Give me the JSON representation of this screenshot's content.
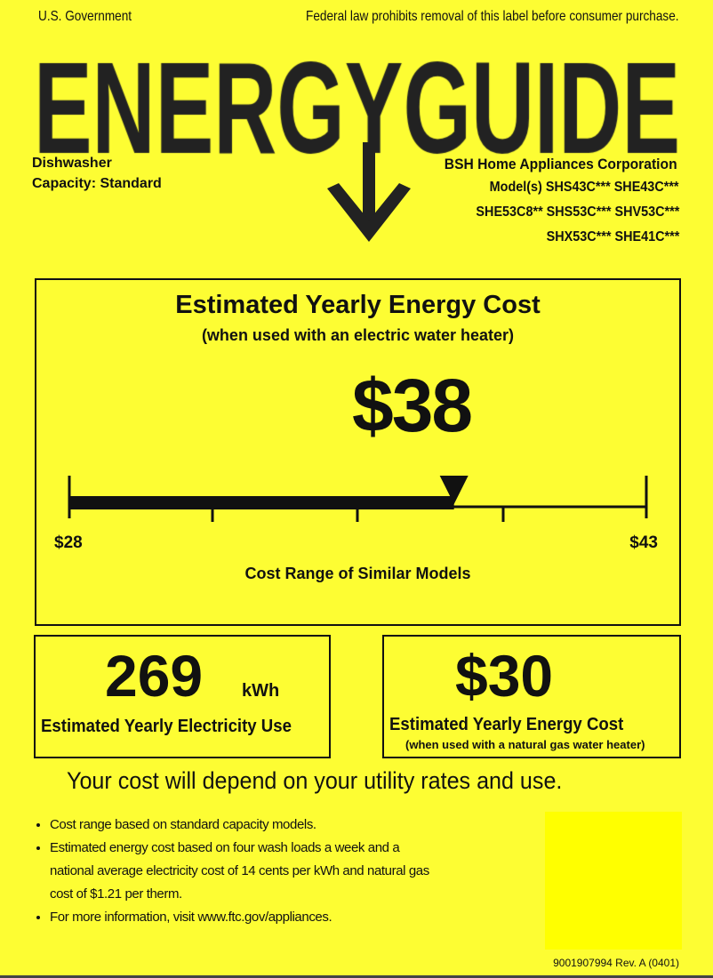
{
  "header": {
    "gov": "U.S. Government",
    "law": "Federal law prohibits removal of this label before consumer purchase."
  },
  "logo": {
    "wordmark": "ENERGYGUIDE"
  },
  "appliance": {
    "type": "Dishwasher",
    "capacity_label": "Capacity:",
    "capacity_value": "Standard"
  },
  "manufacturer": {
    "name": "BSH Home Appliances Corporation",
    "models": [
      "Model(s) SHS43C*** SHE43C***",
      "SHE53C8** SHS53C*** SHV53C***",
      "SHX53C*** SHE41C***"
    ]
  },
  "main_cost": {
    "title": "Estimated Yearly Energy Cost",
    "subtitle": "(when used with an electric water heater)",
    "value": "$38",
    "value_number": 38,
    "range_min": 28,
    "range_max": 43,
    "min_label": "$28",
    "max_label": "$43",
    "range_caption": "Cost Range of Similar Models"
  },
  "electricity": {
    "value": "269",
    "unit": "kWh",
    "label": "Estimated Yearly Electricity Use"
  },
  "gas_cost": {
    "value": "$30",
    "label": "Estimated Yearly Energy Cost",
    "sublabel": "(when used with a natural gas water heater)"
  },
  "notice": "Your cost will depend on your utility rates and use.",
  "bullets": [
    "Cost range based on standard capacity models.",
    "Estimated energy cost based on four wash loads a week and a national average electricity cost of 14 cents per kWh and natural gas cost of $1.21 per therm.",
    "For more information, visit www.ftc.gov/appliances."
  ],
  "footer": {
    "code": "9001907994 Rev. A (0401)"
  },
  "colors": {
    "background": "#fdfd33",
    "swatch": "#ffff00",
    "ink": "#111111"
  }
}
